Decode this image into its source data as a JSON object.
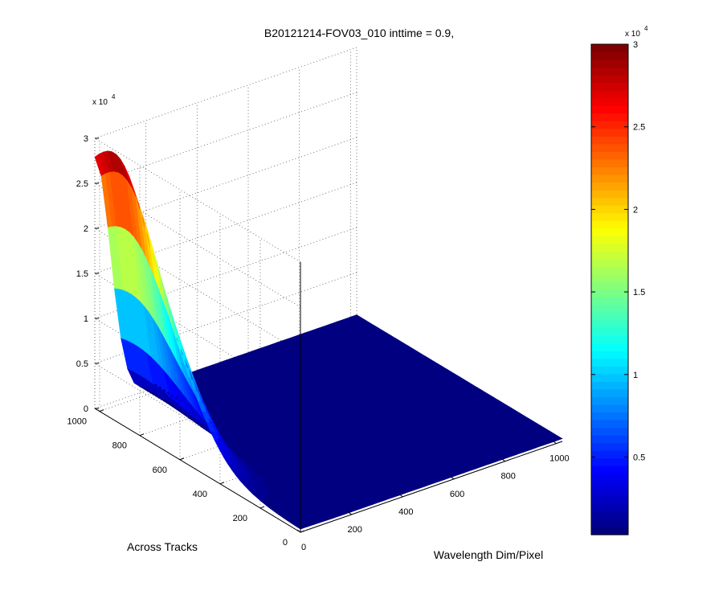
{
  "chart_data": {
    "type": "surface",
    "title": "B20121214-FOV03_010 inttime = 0.9,",
    "xlabel": "Wavelength Dim/Pixel",
    "ylabel": "Across Tracks",
    "zlabel": "",
    "x_range": [
      0,
      1024
    ],
    "y_range": [
      0,
      1024
    ],
    "z_range": [
      0,
      30000
    ],
    "x_ticks": [
      "0",
      "200",
      "400",
      "600",
      "800",
      "1000"
    ],
    "x_tick_values": [
      0,
      200,
      400,
      600,
      800,
      1000
    ],
    "y_ticks": [
      "0",
      "200",
      "400",
      "600",
      "800",
      "1000"
    ],
    "y_tick_values": [
      0,
      200,
      400,
      600,
      800,
      1000
    ],
    "z_ticks": [
      "0",
      "0.5",
      "1",
      "1.5",
      "2",
      "2.5",
      "3"
    ],
    "z_tick_values": [
      0,
      5000,
      10000,
      15000,
      20000,
      25000,
      30000
    ],
    "z_exponent_base": "x 10",
    "z_exponent_power": "4",
    "colorbar": {
      "ticks": [
        "0.5",
        "1",
        "1.5",
        "2",
        "2.5",
        "3"
      ],
      "tick_values": [
        5000,
        10000,
        15000,
        20000,
        25000,
        30000
      ],
      "range": [
        300,
        30000
      ],
      "exponent_base": "x 10",
      "exponent_power": "4",
      "colormap": "jet"
    },
    "surface": {
      "description_peak_x": 0,
      "peak_value": 29500,
      "peak_across_track": 960,
      "across_track_width": 380,
      "wavelength_falloff": 80,
      "baseline": 300
    },
    "grid": true
  }
}
